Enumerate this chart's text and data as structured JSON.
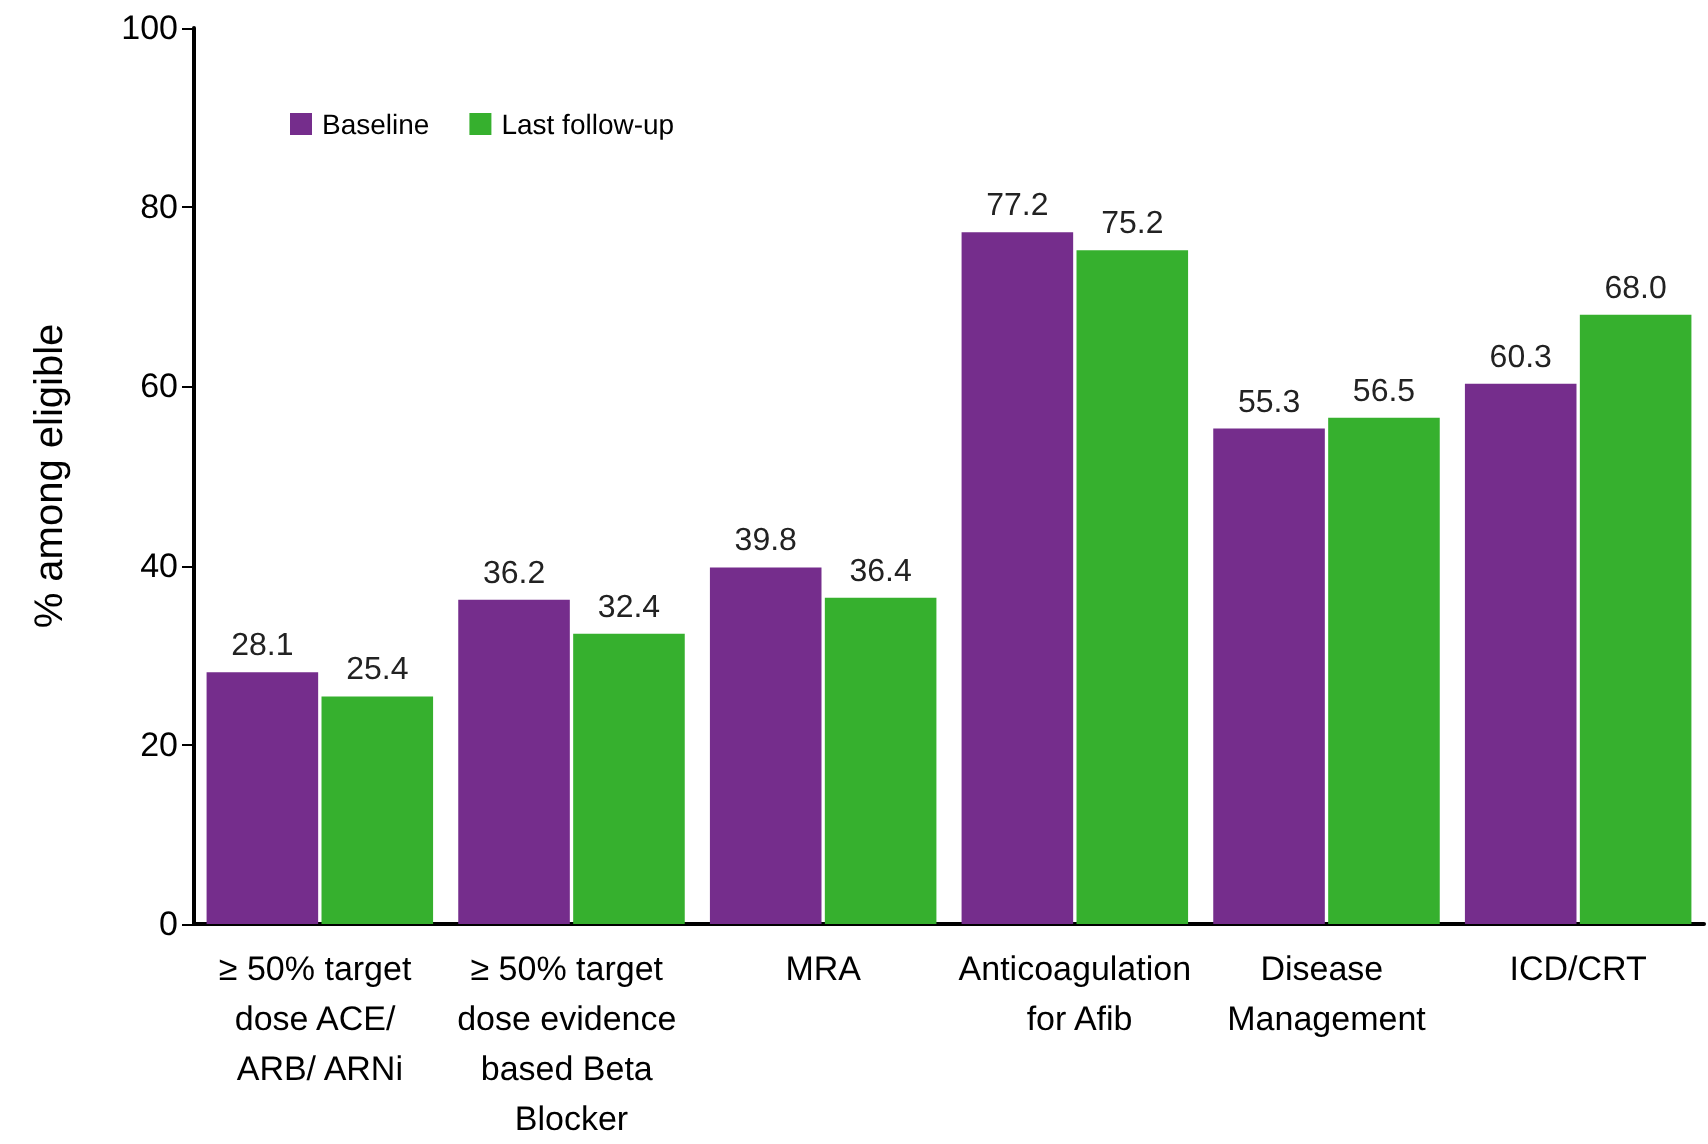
{
  "chart_data": {
    "type": "bar",
    "ylabel": "% among eligible",
    "categories": [
      "≥ 50% target dose ACE/ ARB/ ARNi",
      "≥ 50% target dose evidence based Beta Blocker",
      "MRA",
      "Anticoagulation for Afib",
      "Disease Management",
      "ICD/CRT"
    ],
    "series": [
      {
        "name": "Baseline",
        "color": "#752d8c",
        "values": [
          28.1,
          36.2,
          39.8,
          77.2,
          55.3,
          60.3
        ],
        "value_labels": [
          "28.1",
          "36.2",
          "39.8",
          "77.2",
          "55.3",
          "60.3"
        ]
      },
      {
        "name": "Last follow-up",
        "color": "#36b02e",
        "values": [
          25.4,
          32.4,
          36.4,
          75.2,
          56.5,
          68.0
        ],
        "value_labels": [
          "25.4",
          "32.4",
          "36.4",
          "75.2",
          "56.5",
          "68.0"
        ]
      }
    ],
    "ylim": [
      0,
      100
    ],
    "yticks": [
      0,
      20,
      40,
      60,
      80,
      100
    ],
    "grid": false,
    "legend": "top left"
  }
}
